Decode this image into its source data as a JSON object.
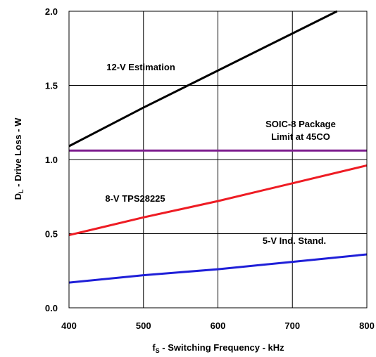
{
  "chart_data": {
    "type": "line",
    "title": "",
    "xlabel": {
      "main": "f",
      "sub": "S",
      "rest": " - Switching Frequency - kHz"
    },
    "ylabel": {
      "main": "D",
      "sub": "L",
      "rest": " - Drive Loss - W"
    },
    "xlim": [
      400,
      800
    ],
    "ylim": [
      0,
      2.0
    ],
    "x_ticks": [
      "400",
      "500",
      "600",
      "700",
      "800"
    ],
    "y_ticks": [
      "0.0",
      "0.5",
      "1.0",
      "1.5",
      "2.0"
    ],
    "grid": true,
    "series": [
      {
        "name": "12-V Estimation",
        "color": "#000000",
        "x": [
          400,
          500,
          600,
          700,
          760
        ],
        "y": [
          1.09,
          1.35,
          1.6,
          1.85,
          2.0
        ]
      },
      {
        "name": "SOIC-8 Package Limit at 45CO",
        "color": "#7f1f8f",
        "x": [
          400,
          800
        ],
        "y": [
          1.06,
          1.06
        ]
      },
      {
        "name": "8-V TPS28225",
        "color": "#ee1c24",
        "x": [
          400,
          500,
          600,
          700,
          800
        ],
        "y": [
          0.49,
          0.61,
          0.72,
          0.84,
          0.96
        ]
      },
      {
        "name": "5-V Ind. Stand.",
        "color": "#1f1fd8",
        "x": [
          400,
          500,
          600,
          700,
          800
        ],
        "y": [
          0.17,
          0.22,
          0.26,
          0.31,
          0.36
        ]
      }
    ],
    "annotations": [
      {
        "lines": [
          "12-V Estimation"
        ]
      },
      {
        "lines": [
          "SOIC-8 Package",
          "Limit at 45CO"
        ]
      },
      {
        "lines": [
          "8-V TPS28225"
        ]
      },
      {
        "lines": [
          "5-V Ind. Stand."
        ]
      }
    ]
  }
}
